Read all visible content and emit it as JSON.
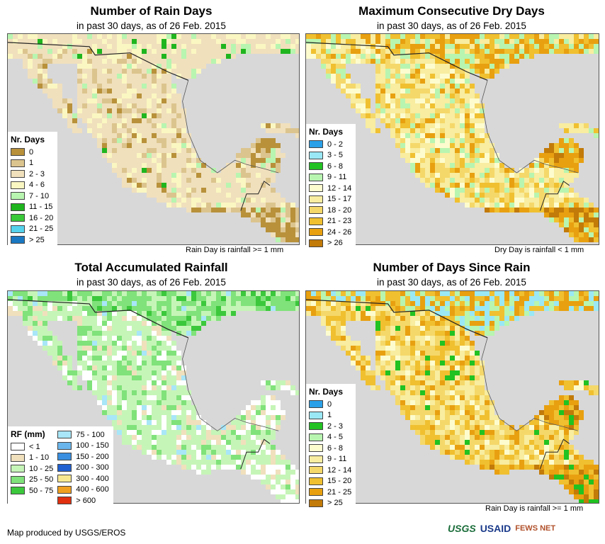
{
  "panels": [
    {
      "title": "Number of Rain Days",
      "subtitle": "in past 30 days, as of 26 Feb. 2015",
      "note": "Rain Day is rainfall >= 1 mm",
      "legend_title": "Nr. Days",
      "legend": [
        {
          "label": "0",
          "color": "#b8913a"
        },
        {
          "label": "1",
          "color": "#dcc48e"
        },
        {
          "label": "2 - 3",
          "color": "#f0e0bc"
        },
        {
          "label": "4 - 6",
          "color": "#fbf7c2"
        },
        {
          "label": "7 - 10",
          "color": "#b8f5b0"
        },
        {
          "label": "11 - 15",
          "color": "#1fb51f"
        },
        {
          "label": "16 - 20",
          "color": "#39c939"
        },
        {
          "label": "21 - 25",
          "color": "#55d2ec"
        },
        {
          "label": "> 25",
          "color": "#1a78c2"
        }
      ]
    },
    {
      "title": "Maximum Consecutive Dry Days",
      "subtitle": "in past 30 days, as of 26 Feb. 2015",
      "note": "Dry Day is rainfall < 1 mm",
      "legend_title": "Nr. Days",
      "legend": [
        {
          "label": "0 - 2",
          "color": "#2aa0e8"
        },
        {
          "label": "3 - 5",
          "color": "#9ae8f5"
        },
        {
          "label": "6 - 8",
          "color": "#21c221"
        },
        {
          "label": "9 - 11",
          "color": "#b8f5b0"
        },
        {
          "label": "12 - 14",
          "color": "#fdfccf"
        },
        {
          "label": "15 - 17",
          "color": "#f8eda0"
        },
        {
          "label": "18 - 20",
          "color": "#f5d86a"
        },
        {
          "label": "21 - 23",
          "color": "#f0c030"
        },
        {
          "label": "24 - 26",
          "color": "#e8a010"
        },
        {
          "label": "> 26",
          "color": "#c27a08"
        }
      ]
    },
    {
      "title": "Total Accumulated Rainfall",
      "subtitle": "in past 30 days, as of 26 Feb. 2015",
      "note": "",
      "legend_title": "RF (mm)",
      "legend": [
        {
          "label": "< 1",
          "color": "#ffffff"
        },
        {
          "label": "1 - 10",
          "color": "#f0e0bc"
        },
        {
          "label": "10 - 25",
          "color": "#c6f5b8"
        },
        {
          "label": "25 - 50",
          "color": "#80e27a"
        },
        {
          "label": "50 - 75",
          "color": "#3cc83c"
        }
      ],
      "legend2": [
        {
          "label": "75 - 100",
          "color": "#a8e6f8"
        },
        {
          "label": "100 - 150",
          "color": "#6ab6ec"
        },
        {
          "label": "150 - 200",
          "color": "#3a8fe0"
        },
        {
          "label": "200 - 300",
          "color": "#2060d0"
        },
        {
          "label": "300 - 400",
          "color": "#f8e890"
        },
        {
          "label": "400 - 600",
          "color": "#f0a020"
        },
        {
          "label": "> 600",
          "color": "#e03010"
        }
      ]
    },
    {
      "title": "Number of Days Since Rain",
      "subtitle": "in past 30 days, as of 26 Feb. 2015",
      "note": "Rain Day is rainfall >= 1 mm",
      "legend_title": "Nr. Days",
      "legend": [
        {
          "label": "0",
          "color": "#2aa0e8"
        },
        {
          "label": "1",
          "color": "#9ae8f5"
        },
        {
          "label": "2 - 3",
          "color": "#21c221"
        },
        {
          "label": "4 - 5",
          "color": "#b8f5b0"
        },
        {
          "label": "6 - 8",
          "color": "#fdfccf"
        },
        {
          "label": "9 - 11",
          "color": "#f8eda0"
        },
        {
          "label": "12 - 14",
          "color": "#f5d86a"
        },
        {
          "label": "15 - 20",
          "color": "#f0c030"
        },
        {
          "label": "21 - 25",
          "color": "#e8a010"
        },
        {
          "label": "> 25",
          "color": "#c27a08"
        }
      ]
    }
  ],
  "credit": "Map produced by USGS/EROS",
  "logos": {
    "usgs": "USGS",
    "usaid": "USAID",
    "fews": "FEWS NET"
  },
  "colors": {
    "ocean": "#d8d8d8",
    "border": "#222222"
  }
}
